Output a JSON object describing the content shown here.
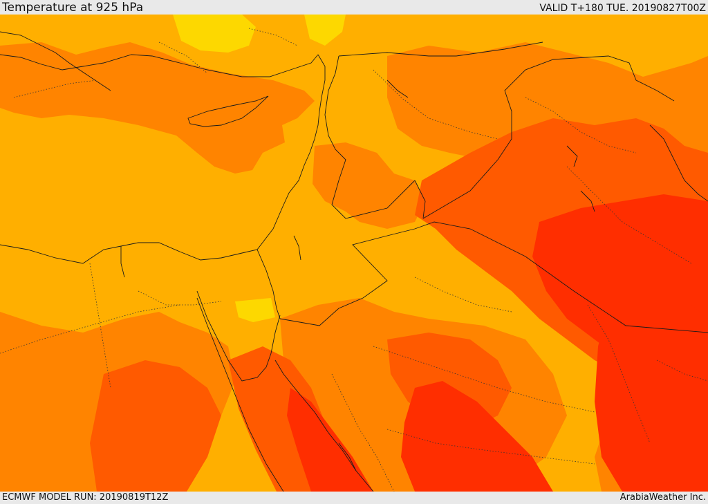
{
  "header": {
    "title": "Temperature at 925 hPa",
    "valid_time": "VALID T+180 TUE. 20190827T00Z"
  },
  "footer": {
    "model_run": "ECMWF MODEL RUN: 20190819T12Z",
    "credit": "ArabiaWeather Inc."
  },
  "map": {
    "palette": {
      "light_yellow": "#fdd800",
      "yellow_orange": "#ffaf00",
      "orange": "#ff8400",
      "dark_orange": "#ff5a00",
      "red": "#ff2e00"
    }
  }
}
